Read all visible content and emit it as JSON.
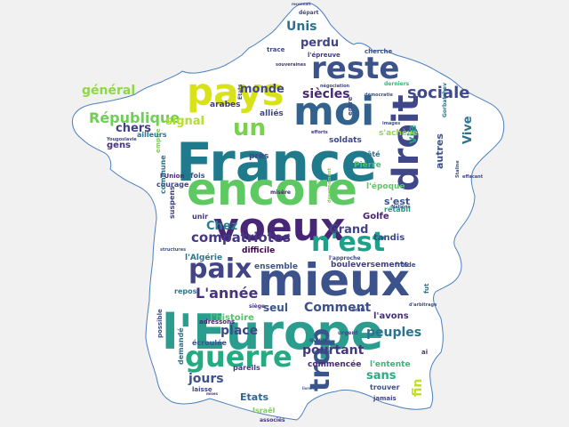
{
  "words": [
    {
      "text": "France",
      "color": "#1f7a8c",
      "size": 60
    },
    {
      "text": "l'Europe",
      "color": "#2a9d8f",
      "size": 54
    },
    {
      "text": "mieux",
      "color": "#3b528b",
      "size": 50
    },
    {
      "text": "encore",
      "color": "#5ec962",
      "size": 50
    },
    {
      "text": "voeux",
      "color": "#482677",
      "size": 44
    },
    {
      "text": "moi",
      "color": "#33638d",
      "size": 44
    },
    {
      "text": "pays",
      "color": "#d7e219",
      "size": 42
    },
    {
      "text": "droit",
      "color": "#3f4788",
      "size": 40
    },
    {
      "text": "reste",
      "color": "#3b528b",
      "size": 34
    },
    {
      "text": "guerre",
      "color": "#25ab82",
      "size": 32
    },
    {
      "text": "paix",
      "color": "#414487",
      "size": 30
    },
    {
      "text": "trop",
      "color": "#39568c",
      "size": 30
    },
    {
      "text": "n'est",
      "color": "#1fa088",
      "size": 30
    },
    {
      "text": "un",
      "color": "#7ad151",
      "size": 26
    },
    {
      "text": "sociale",
      "color": "#3e4a89",
      "size": 18
    },
    {
      "text": "République",
      "color": "#6ece58",
      "size": 16
    },
    {
      "text": "compatriotes",
      "color": "#453781",
      "size": 15
    },
    {
      "text": "L'année",
      "color": "#46327e",
      "size": 16
    },
    {
      "text": "Comment",
      "color": "#3b528b",
      "size": 14
    },
    {
      "text": "peuples",
      "color": "#2c728e",
      "size": 14
    },
    {
      "text": "place",
      "color": "#3e4989",
      "size": 14
    },
    {
      "text": "siècles",
      "color": "#482878",
      "size": 14
    },
    {
      "text": "général",
      "color": "#8fd744",
      "size": 14
    },
    {
      "text": "Unis",
      "color": "#2d708e",
      "size": 14
    },
    {
      "text": "monde",
      "color": "#404688",
      "size": 13
    },
    {
      "text": "perdu",
      "color": "#414487",
      "size": 13
    },
    {
      "text": "jours",
      "color": "#3b528b",
      "size": 14
    },
    {
      "text": "pourtant",
      "color": "#453781",
      "size": 14
    },
    {
      "text": "Grand",
      "color": "#404688",
      "size": 13
    },
    {
      "text": "Chez",
      "color": "#287c8e",
      "size": 13
    },
    {
      "text": "vie",
      "color": "#20a386",
      "size": 13
    },
    {
      "text": "Vive",
      "color": "#2c728e",
      "size": 13
    },
    {
      "text": "signal",
      "color": "#b5de2b",
      "size": 13
    },
    {
      "text": "chers",
      "color": "#433e85",
      "size": 13
    },
    {
      "text": "sans",
      "color": "#27ad81",
      "size": 13
    },
    {
      "text": "seul",
      "color": "#39568c",
      "size": 12
    },
    {
      "text": "fin",
      "color": "#c0df25",
      "size": 14
    },
    {
      "text": "l'avons",
      "color": "#46307e",
      "size": 10
    },
    {
      "text": "Etats",
      "color": "#32658e",
      "size": 11
    },
    {
      "text": "l'histoire",
      "color": "#54c568",
      "size": 10
    },
    {
      "text": "autres",
      "color": "#3b528b",
      "size": 11
    },
    {
      "text": "alliés",
      "color": "#414487",
      "size": 9
    },
    {
      "text": "arabes",
      "color": "#453781",
      "size": 9
    },
    {
      "text": "gens",
      "color": "#46327e",
      "size": 10
    },
    {
      "text": "soldats",
      "color": "#3f4788",
      "size": 9
    },
    {
      "text": "s'achève",
      "color": "#95d840",
      "size": 9
    },
    {
      "text": "Pierre",
      "color": "#4ac16d",
      "size": 9
    },
    {
      "text": "près",
      "color": "#404688",
      "size": 9
    },
    {
      "text": "côté",
      "color": "#2d708e",
      "size": 8
    },
    {
      "text": "s'est",
      "color": "#3b528b",
      "size": 11
    },
    {
      "text": "Golfe",
      "color": "#482173",
      "size": 10
    },
    {
      "text": "tandis",
      "color": "#3e4a89",
      "size": 10
    },
    {
      "text": "rétabli",
      "color": "#1fa188",
      "size": 8
    },
    {
      "text": "l'époque",
      "color": "#5cc863",
      "size": 9
    },
    {
      "text": "difficile",
      "color": "#440154",
      "size": 9
    },
    {
      "text": "l'Algérie",
      "color": "#2a788e",
      "size": 9
    },
    {
      "text": "ensemble",
      "color": "#3b528b",
      "size": 9
    },
    {
      "text": "bouleversements",
      "color": "#433e85",
      "size": 9
    },
    {
      "text": "commencée",
      "color": "#482878",
      "size": 9
    },
    {
      "text": "l'entente",
      "color": "#35b779",
      "size": 9
    },
    {
      "text": "trouver",
      "color": "#3b528b",
      "size": 8
    },
    {
      "text": "jamais",
      "color": "#404688",
      "size": 7
    },
    {
      "text": "pareils",
      "color": "#453781",
      "size": 8
    },
    {
      "text": "Israël",
      "color": "#7ad151",
      "size": 8
    },
    {
      "text": "associés",
      "color": "#46337f",
      "size": 6
    },
    {
      "text": "laisse",
      "color": "#3f4788",
      "size": 7
    },
    {
      "text": "écroulée",
      "color": "#3b528b",
      "size": 8
    },
    {
      "text": "adressons",
      "color": "#482878",
      "size": 7
    },
    {
      "text": "repos",
      "color": "#2a788e",
      "size": 8
    },
    {
      "text": "demandé",
      "color": "#2c728e",
      "size": 8
    },
    {
      "text": "possible",
      "color": "#3e4a89",
      "size": 7
    },
    {
      "text": "suspens",
      "color": "#404688",
      "size": 8
    },
    {
      "text": "unir",
      "color": "#453781",
      "size": 8
    },
    {
      "text": "courage",
      "color": "#3f4788",
      "size": 8
    },
    {
      "text": "commune",
      "color": "#2c728e",
      "size": 8
    },
    {
      "text": "fois",
      "color": "#3b528b",
      "size": 8
    },
    {
      "text": "empire",
      "color": "#7ad151",
      "size": 7
    },
    {
      "text": "ailleurs",
      "color": "#2a788e",
      "size": 8
    },
    {
      "text": "l'Union",
      "color": "#482878",
      "size": 7
    },
    {
      "text": "Etats",
      "color": "#404688",
      "size": 6
    },
    {
      "text": "trace",
      "color": "#3e4a89",
      "size": 7
    },
    {
      "text": "l'épreuve",
      "color": "#453781",
      "size": 7
    },
    {
      "text": "cherche",
      "color": "#3b528b",
      "size": 7
    },
    {
      "text": "départ",
      "color": "#404688",
      "size": 6
    },
    {
      "text": "derniers",
      "color": "#35b779",
      "size": 6
    },
    {
      "text": "entre",
      "color": "#3f4788",
      "size": 7
    },
    {
      "text": "froide",
      "color": "#3b528b",
      "size": 7
    },
    {
      "text": "fut",
      "color": "#2c728e",
      "size": 7
    },
    {
      "text": "ai",
      "color": "#453781",
      "size": 7
    },
    {
      "text": "urgent",
      "color": "#404688",
      "size": 6
    },
    {
      "text": "qu'on",
      "color": "#3e4a89",
      "size": 6
    },
    {
      "text": "soient",
      "color": "#3b528b",
      "size": 6
    },
    {
      "text": "siège",
      "color": "#46327e",
      "size": 6
    },
    {
      "text": "misère",
      "color": "#482878",
      "size": 6
    },
    {
      "text": "structures",
      "color": "#3b528b",
      "size": 5
    },
    {
      "text": "Yougoslavie",
      "color": "#404688",
      "size": 5
    },
    {
      "text": "Gorbatchev",
      "color": "#2a788e",
      "size": 6
    },
    {
      "text": "Staline",
      "color": "#3b528b",
      "size": 5
    },
    {
      "text": "souveraines",
      "color": "#453781",
      "size": 5
    },
    {
      "text": "Nations",
      "color": "#3e4a89",
      "size": 5
    },
    {
      "text": "effacant",
      "color": "#404688",
      "size": 5
    },
    {
      "text": "démocratie",
      "color": "#3b528b",
      "size": 5
    },
    {
      "text": "désarmement",
      "color": "#7ad151",
      "size": 5
    },
    {
      "text": "l'approche",
      "color": "#3f4788",
      "size": 6
    },
    {
      "text": "images",
      "color": "#3b528b",
      "size": 5
    },
    {
      "text": "efforts",
      "color": "#453781",
      "size": 5
    },
    {
      "text": "négociation",
      "color": "#404688",
      "size": 5
    },
    {
      "text": "brûlé",
      "color": "#3e4a89",
      "size": 5
    },
    {
      "text": "d'arbitrage",
      "color": "#3b528b",
      "size": 5
    },
    {
      "text": "reconnaît",
      "color": "#404688",
      "size": 4
    },
    {
      "text": "livrent",
      "color": "#3b528b",
      "size": 4
    },
    {
      "text": "mises",
      "color": "#453781",
      "size": 4
    }
  ]
}
